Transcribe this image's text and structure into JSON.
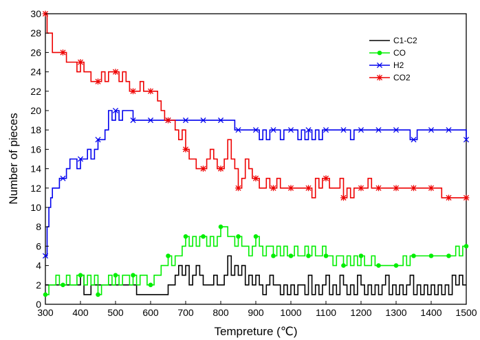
{
  "chart_data": {
    "type": "line",
    "xlabel": "Tempreture (℃)",
    "ylabel": "Number of pieces",
    "xlim": [
      300,
      1500
    ],
    "ylim": [
      0,
      30
    ],
    "xticks": [
      300,
      400,
      500,
      600,
      700,
      800,
      900,
      1000,
      1100,
      1200,
      1300,
      1400,
      1500
    ],
    "yticks": [
      0,
      2,
      4,
      6,
      8,
      10,
      12,
      14,
      16,
      18,
      20,
      22,
      24,
      26,
      28,
      30
    ],
    "grid": false,
    "legend_position": "top-right",
    "series": [
      {
        "name": "C1-C2",
        "color": "#000000",
        "marker": "none",
        "x": [
          300,
          340,
          390,
          400,
          410,
          420,
          430,
          440,
          450,
          460,
          480,
          500,
          520,
          550,
          555,
          560,
          570,
          580,
          600,
          620,
          640,
          650,
          660,
          670,
          680,
          690,
          700,
          710,
          720,
          730,
          740,
          750,
          760,
          770,
          780,
          790,
          800,
          810,
          820,
          830,
          840,
          850,
          860,
          870,
          880,
          890,
          900,
          910,
          920,
          930,
          940,
          950,
          960,
          970,
          980,
          990,
          1000,
          1010,
          1020,
          1030,
          1040,
          1050,
          1060,
          1070,
          1080,
          1090,
          1100,
          1110,
          1120,
          1130,
          1140,
          1150,
          1160,
          1170,
          1180,
          1190,
          1200,
          1210,
          1220,
          1230,
          1240,
          1250,
          1260,
          1270,
          1280,
          1290,
          1300,
          1310,
          1320,
          1330,
          1340,
          1350,
          1360,
          1370,
          1380,
          1390,
          1400,
          1410,
          1420,
          1430,
          1440,
          1450,
          1460,
          1470,
          1480,
          1490,
          1500
        ],
        "y": [
          2,
          2,
          2,
          3,
          1,
          1,
          2,
          2,
          2,
          2,
          2,
          2,
          2,
          2,
          2,
          1,
          1,
          1,
          1,
          1,
          1,
          2,
          2,
          3,
          4,
          3,
          4,
          2,
          3,
          4,
          3,
          2,
          2,
          2,
          3,
          2,
          2,
          3,
          5,
          3,
          4,
          3,
          4,
          2,
          3,
          2,
          3,
          2,
          1,
          2,
          3,
          2,
          2,
          1,
          2,
          1,
          2,
          1,
          2,
          2,
          1,
          3,
          1,
          2,
          1,
          2,
          3,
          1,
          2,
          1,
          3,
          2,
          1,
          2,
          1,
          3,
          2,
          1,
          2,
          1,
          2,
          1,
          2,
          3,
          1,
          2,
          1,
          2,
          1,
          2,
          3,
          1,
          2,
          1,
          2,
          1,
          2,
          1,
          2,
          1,
          2,
          1,
          3,
          2,
          3,
          2,
          2
        ]
      },
      {
        "name": "CO",
        "color": "#00ee00",
        "marker": "circle",
        "x": [
          300,
          310,
          320,
          330,
          340,
          350,
          360,
          370,
          380,
          390,
          400,
          410,
          420,
          430,
          440,
          450,
          460,
          470,
          480,
          490,
          500,
          510,
          520,
          530,
          540,
          550,
          560,
          570,
          580,
          590,
          600,
          610,
          620,
          630,
          640,
          650,
          660,
          670,
          680,
          690,
          700,
          710,
          720,
          730,
          740,
          750,
          760,
          770,
          780,
          790,
          800,
          810,
          820,
          830,
          840,
          850,
          860,
          870,
          880,
          890,
          900,
          910,
          920,
          930,
          940,
          950,
          960,
          970,
          980,
          990,
          1000,
          1010,
          1020,
          1030,
          1040,
          1050,
          1060,
          1070,
          1080,
          1090,
          1100,
          1110,
          1120,
          1130,
          1140,
          1150,
          1160,
          1170,
          1180,
          1190,
          1200,
          1210,
          1220,
          1230,
          1240,
          1250,
          1260,
          1270,
          1280,
          1290,
          1300,
          1310,
          1320,
          1330,
          1340,
          1350,
          1360,
          1370,
          1380,
          1390,
          1400,
          1410,
          1420,
          1430,
          1440,
          1450,
          1460,
          1470,
          1480,
          1490,
          1500
        ],
        "y": [
          1,
          2,
          2,
          3,
          2,
          2,
          3,
          2,
          2,
          3,
          3,
          2,
          3,
          2,
          3,
          1,
          2,
          2,
          3,
          2,
          3,
          2,
          3,
          3,
          2,
          3,
          2,
          3,
          3,
          2,
          2,
          3,
          3,
          4,
          4,
          5,
          4,
          5,
          5,
          6,
          7,
          6,
          7,
          6,
          7,
          7,
          6,
          7,
          6,
          7,
          8,
          8,
          7,
          7,
          6,
          7,
          6,
          6,
          5,
          6,
          7,
          6,
          5,
          6,
          6,
          5,
          6,
          5,
          6,
          5,
          5,
          6,
          5,
          5,
          6,
          5,
          6,
          5,
          5,
          6,
          5,
          5,
          4,
          5,
          5,
          4,
          5,
          4,
          5,
          4,
          5,
          4,
          4,
          5,
          4,
          4,
          4,
          4,
          4,
          4,
          4,
          4,
          5,
          4,
          5,
          5,
          5,
          5,
          5,
          5,
          5,
          5,
          5,
          5,
          5,
          5,
          5,
          6,
          5,
          6,
          6
        ]
      },
      {
        "name": "H2",
        "color": "#0000ee",
        "marker": "x",
        "x": [
          300,
          305,
          310,
          315,
          320,
          330,
          340,
          350,
          360,
          370,
          380,
          390,
          400,
          410,
          420,
          430,
          440,
          450,
          460,
          470,
          480,
          490,
          500,
          510,
          520,
          530,
          540,
          550,
          600,
          650,
          700,
          750,
          800,
          820,
          840,
          850,
          860,
          870,
          880,
          890,
          900,
          910,
          920,
          930,
          940,
          950,
          960,
          970,
          980,
          990,
          1000,
          1010,
          1020,
          1030,
          1040,
          1050,
          1060,
          1070,
          1080,
          1090,
          1100,
          1110,
          1120,
          1130,
          1140,
          1150,
          1160,
          1170,
          1180,
          1190,
          1200,
          1210,
          1220,
          1230,
          1240,
          1250,
          1260,
          1270,
          1280,
          1290,
          1300,
          1310,
          1320,
          1330,
          1340,
          1350,
          1360,
          1370,
          1380,
          1390,
          1400,
          1410,
          1420,
          1430,
          1440,
          1450,
          1460,
          1470,
          1480,
          1490,
          1500
        ],
        "y": [
          5,
          8,
          10,
          11,
          12,
          12,
          13,
          13,
          14,
          15,
          15,
          14,
          15,
          15,
          16,
          15,
          16,
          17,
          17,
          18,
          20,
          19,
          20,
          19,
          20,
          20,
          20,
          19,
          19,
          19,
          19,
          19,
          19,
          19,
          18,
          18,
          18,
          18,
          18,
          18,
          18,
          17,
          18,
          17,
          18,
          18,
          18,
          17,
          18,
          18,
          18,
          18,
          17,
          18,
          17,
          18,
          17,
          18,
          17,
          18,
          18,
          18,
          18,
          18,
          18,
          18,
          18,
          17,
          18,
          18,
          18,
          18,
          18,
          18,
          18,
          18,
          18,
          18,
          18,
          18,
          18,
          18,
          18,
          18,
          17,
          17,
          18,
          18,
          18,
          18,
          18,
          18,
          18,
          18,
          18,
          18,
          18,
          18,
          18,
          18,
          17
        ]
      },
      {
        "name": "CO2",
        "color": "#ee0000",
        "marker": "asterisk",
        "x": [
          300,
          305,
          310,
          320,
          330,
          340,
          350,
          360,
          370,
          380,
          390,
          400,
          410,
          420,
          430,
          440,
          450,
          460,
          470,
          480,
          490,
          500,
          510,
          520,
          530,
          540,
          550,
          560,
          570,
          580,
          590,
          600,
          610,
          620,
          630,
          640,
          650,
          660,
          670,
          680,
          690,
          700,
          710,
          720,
          730,
          740,
          750,
          760,
          770,
          780,
          790,
          800,
          810,
          820,
          830,
          840,
          850,
          860,
          870,
          880,
          890,
          900,
          910,
          920,
          930,
          940,
          950,
          960,
          970,
          980,
          990,
          1000,
          1010,
          1020,
          1030,
          1040,
          1050,
          1060,
          1070,
          1080,
          1090,
          1100,
          1110,
          1120,
          1130,
          1140,
          1150,
          1160,
          1170,
          1180,
          1190,
          1200,
          1210,
          1220,
          1230,
          1240,
          1250,
          1260,
          1270,
          1280,
          1290,
          1300,
          1310,
          1320,
          1330,
          1340,
          1350,
          1360,
          1370,
          1380,
          1390,
          1400,
          1410,
          1420,
          1430,
          1440,
          1450,
          1460,
          1470,
          1480,
          1490,
          1500
        ],
        "y": [
          30,
          28,
          28,
          26,
          26,
          26,
          26,
          25,
          25,
          25,
          24,
          25,
          24,
          24,
          23,
          23,
          23,
          24,
          23,
          24,
          24,
          24,
          23,
          24,
          23,
          22,
          22,
          22,
          23,
          22,
          22,
          22,
          22,
          21,
          20,
          19,
          19,
          19,
          18,
          17,
          18,
          16,
          15,
          15,
          14,
          14,
          14,
          15,
          16,
          15,
          14,
          14,
          15,
          17,
          15,
          14,
          12,
          13,
          15,
          14,
          13,
          13,
          12,
          12,
          13,
          12,
          12,
          13,
          12,
          12,
          12,
          12,
          12,
          12,
          12,
          12,
          12,
          11,
          13,
          12,
          13,
          13,
          12,
          12,
          12,
          13,
          11,
          12,
          11,
          12,
          12,
          12,
          12,
          13,
          12,
          12,
          12,
          12,
          12,
          12,
          12,
          12,
          12,
          12,
          12,
          12,
          12,
          12,
          12,
          12,
          12,
          12,
          12,
          12,
          11,
          11,
          11,
          11,
          11,
          11,
          11,
          11
        ]
      }
    ]
  }
}
